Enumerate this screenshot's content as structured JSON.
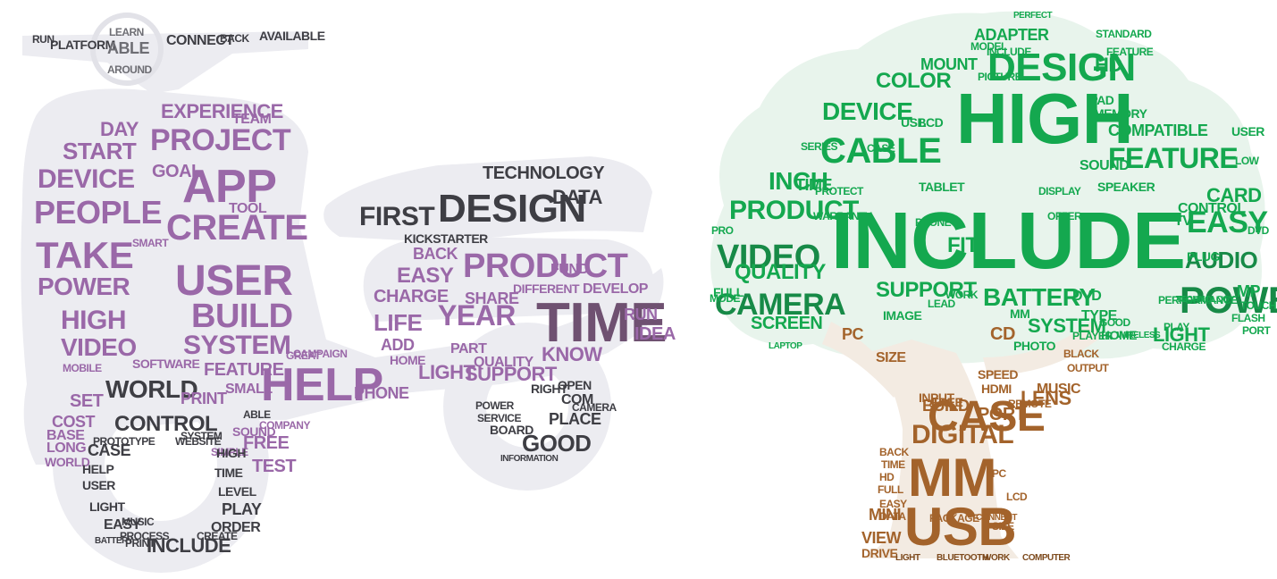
{
  "colors": {
    "background": "#ffffff",
    "halo": "#e9e9ee",
    "purple": "#9a68a8",
    "purple_dark": "#6f5171",
    "gray_dark": "#3e3e44",
    "gray": "#6e6e74",
    "green": "#14a84f",
    "green_light": "#2fb765",
    "green_dark": "#178a47",
    "brown": "#a3632b",
    "brown_dark": "#7d4a1d"
  },
  "clouds": [
    {
      "id": "scooter",
      "shape_icon": "scooter-icon",
      "words": [
        {
          "text": "TIME",
          "color": "purple_dark"
        },
        {
          "text": "DESIGN",
          "color": "gray_dark"
        },
        {
          "text": "PRODUCT",
          "color": "purple"
        },
        {
          "text": "HELP",
          "color": "purple"
        },
        {
          "text": "APP",
          "color": "purple"
        },
        {
          "text": "USER",
          "color": "purple"
        },
        {
          "text": "CREATE",
          "color": "purple"
        },
        {
          "text": "PROJECT",
          "color": "purple"
        },
        {
          "text": "BUILD",
          "color": "purple"
        },
        {
          "text": "SYSTEM",
          "color": "purple"
        },
        {
          "text": "TAKE",
          "color": "purple"
        },
        {
          "text": "PEOPLE",
          "color": "purple"
        },
        {
          "text": "DEVICE",
          "color": "purple"
        },
        {
          "text": "POWER",
          "color": "purple"
        },
        {
          "text": "HIGH",
          "color": "purple"
        },
        {
          "text": "VIDEO",
          "color": "purple"
        },
        {
          "text": "START",
          "color": "purple"
        },
        {
          "text": "DAY",
          "color": "purple"
        },
        {
          "text": "EXPERIENCE",
          "color": "purple"
        },
        {
          "text": "TEAM",
          "color": "purple"
        },
        {
          "text": "GOAL",
          "color": "purple"
        },
        {
          "text": "TOOL",
          "color": "purple"
        },
        {
          "text": "WORLD",
          "color": "gray_dark"
        },
        {
          "text": "CONTROL",
          "color": "gray_dark"
        },
        {
          "text": "FEATURE",
          "color": "purple"
        },
        {
          "text": "SMALL",
          "color": "purple"
        },
        {
          "text": "PRINT",
          "color": "purple"
        },
        {
          "text": "FREE",
          "color": "purple"
        },
        {
          "text": "TEST",
          "color": "purple"
        },
        {
          "text": "SOUND",
          "color": "purple"
        },
        {
          "text": "FIRST",
          "color": "gray_dark"
        },
        {
          "text": "TECHNOLOGY",
          "color": "gray_dark"
        },
        {
          "text": "DATA",
          "color": "gray_dark"
        },
        {
          "text": "KICKSTARTER",
          "color": "gray_dark"
        },
        {
          "text": "EASY",
          "color": "purple"
        },
        {
          "text": "BACK",
          "color": "purple"
        },
        {
          "text": "CHARGE",
          "color": "purple"
        },
        {
          "text": "LIFE",
          "color": "purple"
        },
        {
          "text": "YEAR",
          "color": "purple"
        },
        {
          "text": "SHARE",
          "color": "purple"
        },
        {
          "text": "ADD",
          "color": "purple"
        },
        {
          "text": "HOME",
          "color": "purple"
        },
        {
          "text": "PHONE",
          "color": "purple"
        },
        {
          "text": "LIGHT",
          "color": "purple"
        },
        {
          "text": "SUPPORT",
          "color": "purple"
        },
        {
          "text": "KNOW",
          "color": "purple"
        },
        {
          "text": "DEVELOP",
          "color": "purple"
        },
        {
          "text": "RUN",
          "color": "purple"
        },
        {
          "text": "IDEA",
          "color": "purple"
        },
        {
          "text": "PART",
          "color": "purple"
        },
        {
          "text": "GOOD",
          "color": "gray_dark"
        },
        {
          "text": "COM",
          "color": "gray_dark"
        },
        {
          "text": "OPEN",
          "color": "gray_dark"
        },
        {
          "text": "PLACE",
          "color": "gray_dark"
        },
        {
          "text": "BOARD",
          "color": "gray_dark"
        },
        {
          "text": "INCLUDE",
          "color": "gray_dark"
        },
        {
          "text": "CASE",
          "color": "gray_dark"
        },
        {
          "text": "PLAY",
          "color": "gray_dark"
        },
        {
          "text": "LEVEL",
          "color": "gray_dark"
        },
        {
          "text": "ORDER",
          "color": "gray_dark"
        },
        {
          "text": "EASY",
          "color": "gray_dark"
        },
        {
          "text": "CONNECT",
          "color": "gray_dark"
        },
        {
          "text": "AVAILABLE",
          "color": "gray_dark"
        },
        {
          "text": "PLATFORM",
          "color": "gray_dark"
        },
        {
          "text": "RUN",
          "color": "gray_dark"
        },
        {
          "text": "BACK",
          "color": "gray_dark"
        },
        {
          "text": "SET",
          "color": "purple"
        },
        {
          "text": "COST",
          "color": "purple"
        },
        {
          "text": "BASE",
          "color": "purple"
        },
        {
          "text": "LONG",
          "color": "purple"
        },
        {
          "text": "WORLD",
          "color": "purple"
        },
        {
          "text": "SOFTWARE",
          "color": "purple"
        },
        {
          "text": "MOBILE",
          "color": "purple"
        },
        {
          "text": "BATTERY",
          "color": "gray_dark"
        },
        {
          "text": "ABLE",
          "color": "gray"
        },
        {
          "text": "LEARN",
          "color": "gray"
        },
        {
          "text": "AROUND",
          "color": "gray"
        },
        {
          "text": "CAMPAIGN",
          "color": "purple"
        },
        {
          "text": "GREAT",
          "color": "purple"
        },
        {
          "text": "SIMPLE",
          "color": "purple"
        },
        {
          "text": "SMART",
          "color": "purple"
        },
        {
          "text": "COMPANY",
          "color": "purple"
        },
        {
          "text": "RIGHT",
          "color": "gray_dark"
        },
        {
          "text": "CAMERA",
          "color": "gray_dark"
        },
        {
          "text": "SERVICE",
          "color": "gray_dark"
        },
        {
          "text": "POWER",
          "color": "gray_dark"
        },
        {
          "text": "INFORMATION",
          "color": "gray_dark"
        },
        {
          "text": "MUSIC",
          "color": "gray_dark"
        },
        {
          "text": "FUND",
          "color": "purple"
        },
        {
          "text": "DIFFERENT",
          "color": "purple"
        },
        {
          "text": "QUALITY",
          "color": "purple"
        },
        {
          "text": "HIGH",
          "color": "gray_dark"
        },
        {
          "text": "TIME",
          "color": "gray_dark"
        },
        {
          "text": "HELP",
          "color": "gray_dark"
        },
        {
          "text": "USER",
          "color": "gray_dark"
        },
        {
          "text": "LIGHT",
          "color": "gray_dark"
        },
        {
          "text": "PROCESS",
          "color": "gray_dark"
        },
        {
          "text": "PRINT",
          "color": "gray_dark"
        },
        {
          "text": "CREATE",
          "color": "gray_dark"
        },
        {
          "text": "PROTOTYPE",
          "color": "gray_dark"
        },
        {
          "text": "WEBSITE",
          "color": "gray_dark"
        },
        {
          "text": "SYSTEM",
          "color": "gray_dark"
        },
        {
          "text": "ABLE",
          "color": "gray_dark"
        }
      ]
    },
    {
      "id": "tree",
      "shape_icon": "tree-icon",
      "words": [
        {
          "text": "INCLUDE",
          "color": "green"
        },
        {
          "text": "HIGH",
          "color": "green"
        },
        {
          "text": "CAMERA",
          "color": "green_dark"
        },
        {
          "text": "DESIGN",
          "color": "green"
        },
        {
          "text": "CABLE",
          "color": "green"
        },
        {
          "text": "VIDEO",
          "color": "green_dark"
        },
        {
          "text": "POWER",
          "color": "green_dark"
        },
        {
          "text": "FEATURE",
          "color": "green"
        },
        {
          "text": "EASY",
          "color": "green"
        },
        {
          "text": "AUDIO",
          "color": "green_dark"
        },
        {
          "text": "PRODUCT",
          "color": "green"
        },
        {
          "text": "INCH",
          "color": "green"
        },
        {
          "text": "QUALITY",
          "color": "green"
        },
        {
          "text": "SUPPORT",
          "color": "green"
        },
        {
          "text": "BATTERY",
          "color": "green"
        },
        {
          "text": "SYSTEM",
          "color": "green"
        },
        {
          "text": "LIGHT",
          "color": "green"
        },
        {
          "text": "SCREEN",
          "color": "green"
        },
        {
          "text": "DEVICE",
          "color": "green"
        },
        {
          "text": "COLOR",
          "color": "green"
        },
        {
          "text": "MOUNT",
          "color": "green"
        },
        {
          "text": "ADAPTER",
          "color": "green"
        },
        {
          "text": "HD",
          "color": "green"
        },
        {
          "text": "CARD",
          "color": "green"
        },
        {
          "text": "CONTROL",
          "color": "green"
        },
        {
          "text": "COMPATIBLE",
          "color": "green"
        },
        {
          "text": "TIME",
          "color": "green"
        },
        {
          "text": "TV",
          "color": "green"
        },
        {
          "text": "FULL",
          "color": "green"
        },
        {
          "text": "IMAGE",
          "color": "green"
        },
        {
          "text": "WORK",
          "color": "green"
        },
        {
          "text": "DVD",
          "color": "green"
        },
        {
          "text": "TYPE",
          "color": "green"
        },
        {
          "text": "MM",
          "color": "green"
        },
        {
          "text": "SPEAKER",
          "color": "green"
        },
        {
          "text": "SOUND",
          "color": "green"
        },
        {
          "text": "MEMORY",
          "color": "green"
        },
        {
          "text": "IPAD",
          "color": "green"
        },
        {
          "text": "FIT",
          "color": "green"
        },
        {
          "text": "USB",
          "color": "green"
        },
        {
          "text": "LCD",
          "color": "green"
        },
        {
          "text": "DVD",
          "color": "green"
        },
        {
          "text": "PLUG",
          "color": "green"
        },
        {
          "text": "MP",
          "color": "green"
        },
        {
          "text": "CASE",
          "color": "brown"
        },
        {
          "text": "DIGITAL",
          "color": "brown"
        },
        {
          "text": "MM",
          "color": "brown"
        },
        {
          "text": "USB",
          "color": "brown"
        },
        {
          "text": "LENS",
          "color": "brown"
        },
        {
          "text": "PORT",
          "color": "brown"
        },
        {
          "text": "BUILD",
          "color": "brown"
        },
        {
          "text": "FREE",
          "color": "brown"
        },
        {
          "text": "CD",
          "color": "brown"
        },
        {
          "text": "PC",
          "color": "brown"
        },
        {
          "text": "SIZE",
          "color": "brown"
        },
        {
          "text": "SPEED",
          "color": "brown"
        },
        {
          "text": "HDMI",
          "color": "brown"
        },
        {
          "text": "MUSIC",
          "color": "brown"
        },
        {
          "text": "INPUT",
          "color": "brown"
        },
        {
          "text": "MINI",
          "color": "brown"
        },
        {
          "text": "VIEW",
          "color": "brown"
        },
        {
          "text": "DRIVE",
          "color": "brown"
        },
        {
          "text": "BACK",
          "color": "brown"
        },
        {
          "text": "TIME",
          "color": "brown"
        },
        {
          "text": "HD",
          "color": "brown"
        },
        {
          "text": "FULL",
          "color": "brown"
        },
        {
          "text": "EASY",
          "color": "brown"
        },
        {
          "text": "DATA",
          "color": "brown"
        },
        {
          "text": "PACKAGE",
          "color": "brown"
        },
        {
          "text": "CONNECT",
          "color": "brown"
        },
        {
          "text": "PC",
          "color": "brown"
        },
        {
          "text": "LCD",
          "color": "brown"
        },
        {
          "text": "SIZE",
          "color": "brown"
        },
        {
          "text": "OUTPUT",
          "color": "brown"
        },
        {
          "text": "BLACK",
          "color": "brown"
        },
        {
          "text": "REMOTE",
          "color": "brown"
        },
        {
          "text": "LIGHT",
          "color": "brown_dark"
        },
        {
          "text": "BLUETOOTH",
          "color": "brown_dark"
        },
        {
          "text": "WORK",
          "color": "brown_dark"
        },
        {
          "text": "COMPUTER",
          "color": "brown_dark"
        },
        {
          "text": "HOME",
          "color": "green"
        },
        {
          "text": "GOOD",
          "color": "green"
        },
        {
          "text": "PERFORMANCE",
          "color": "green"
        },
        {
          "text": "WIRELESS",
          "color": "green"
        },
        {
          "text": "CHARGE",
          "color": "green"
        },
        {
          "text": "TECHNOLOGY",
          "color": "green"
        },
        {
          "text": "PHONE",
          "color": "green"
        },
        {
          "text": "TABLET",
          "color": "green"
        },
        {
          "text": "DISPLAY",
          "color": "green"
        },
        {
          "text": "LAPTOP",
          "color": "green"
        },
        {
          "text": "PRO",
          "color": "green"
        },
        {
          "text": "SERIES",
          "color": "green"
        },
        {
          "text": "MODE",
          "color": "green"
        },
        {
          "text": "WARRANTY",
          "color": "green"
        },
        {
          "text": "PROTECT",
          "color": "green"
        },
        {
          "text": "MODEL",
          "color": "green"
        },
        {
          "text": "STANDARD",
          "color": "green"
        },
        {
          "text": "OFFER",
          "color": "green"
        },
        {
          "text": "USER",
          "color": "green"
        },
        {
          "text": "LOW",
          "color": "green"
        },
        {
          "text": "TOUCH",
          "color": "green"
        },
        {
          "text": "PORT",
          "color": "green"
        },
        {
          "text": "FLASH",
          "color": "green"
        },
        {
          "text": "PLAY",
          "color": "green"
        },
        {
          "text": "PLAYER",
          "color": "green"
        },
        {
          "text": "PICTURE",
          "color": "green"
        },
        {
          "text": "INCLUDE",
          "color": "green"
        },
        {
          "text": "PERFECT",
          "color": "green"
        },
        {
          "text": "FEATURE",
          "color": "green"
        },
        {
          "text": "CASE",
          "color": "green"
        },
        {
          "text": "LEAD",
          "color": "green"
        },
        {
          "text": "PHOTO",
          "color": "green"
        },
        {
          "text": "CD",
          "color": "green"
        }
      ]
    }
  ]
}
